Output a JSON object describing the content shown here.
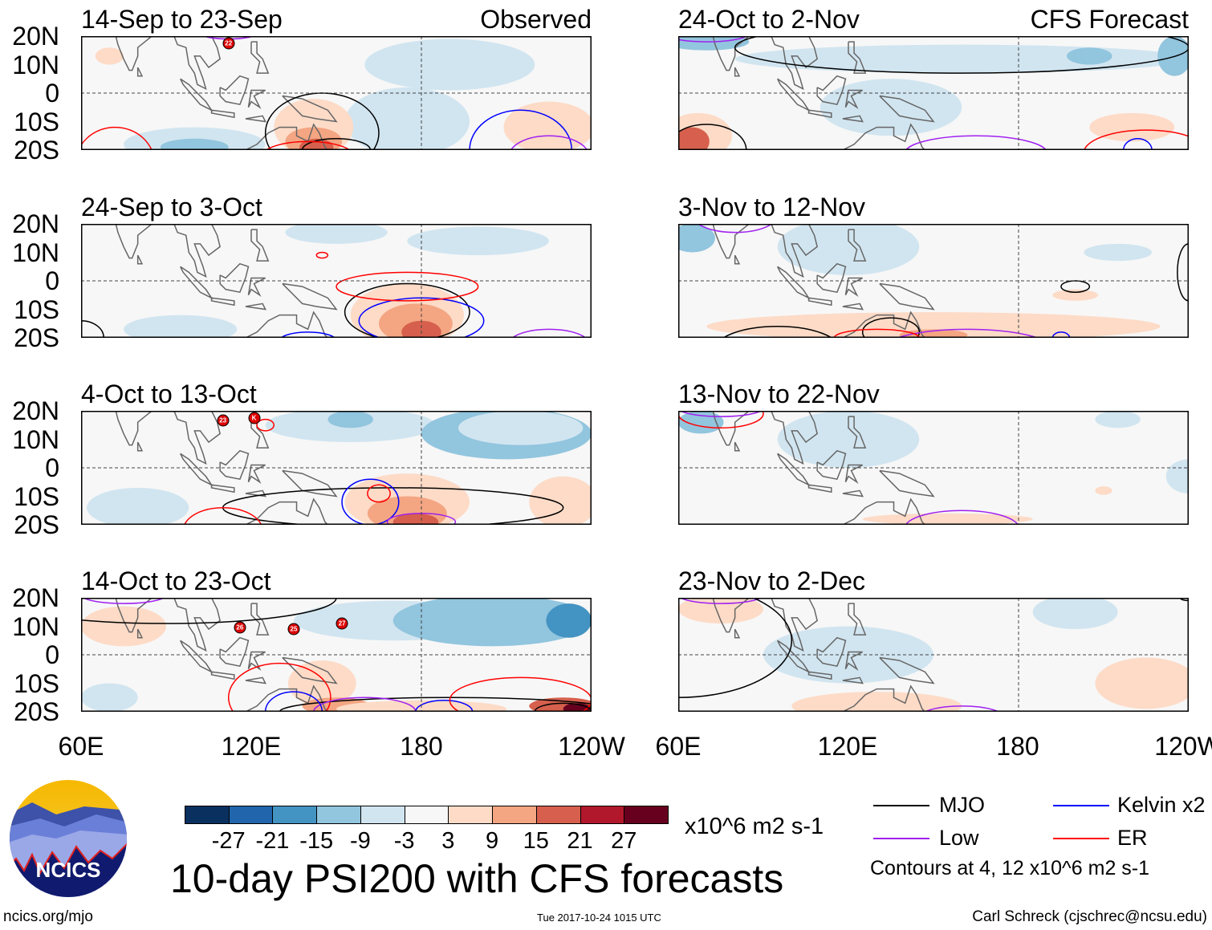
{
  "panels": [
    {
      "title": "14-Sep to 23-Sep",
      "tag": "Observed",
      "storms": [
        {
          "label": "22",
          "lon": 112,
          "lat": 17.5
        }
      ]
    },
    {
      "title": "24-Sep to 3-Oct",
      "tag": "",
      "storms": []
    },
    {
      "title": "4-Oct to 13-Oct",
      "tag": "",
      "storms": [
        {
          "label": "23",
          "lon": 110,
          "lat": 16.5
        },
        {
          "label": "K",
          "lon": 121,
          "lat": 17.5
        }
      ]
    },
    {
      "title": "14-Oct to 23-Oct",
      "tag": "",
      "storms": [
        {
          "label": "26",
          "lon": 116,
          "lat": 9.5
        },
        {
          "label": "25",
          "lon": 135,
          "lat": 9
        },
        {
          "label": "27",
          "lon": 152,
          "lat": 11
        }
      ]
    },
    {
      "title": "24-Oct to 2-Nov",
      "tag": "CFS Forecast",
      "storms": []
    },
    {
      "title": "3-Nov to 12-Nov",
      "tag": "",
      "storms": []
    },
    {
      "title": "13-Nov to 22-Nov",
      "tag": "",
      "storms": []
    },
    {
      "title": "23-Nov to 2-Dec",
      "tag": "",
      "storms": []
    }
  ],
  "lat_labels": [
    "20N",
    "10N",
    "0",
    "10S",
    "20S"
  ],
  "lon_labels": [
    "60E",
    "120E",
    "180",
    "120W"
  ],
  "colorbar": {
    "colors": [
      "#0a3060",
      "#2166ac",
      "#4393c3",
      "#92c5de",
      "#d1e5f0",
      "#f7f7f7",
      "#fddbc7",
      "#f4a582",
      "#d6604d",
      "#b2182b",
      "#67001f"
    ],
    "ticks": [
      "-27",
      "-21",
      "-15",
      "-9",
      "-3",
      "3",
      "9",
      "15",
      "21",
      "27"
    ],
    "units": "x10^6 m2 s-1"
  },
  "legend": {
    "items": [
      {
        "label": "MJO",
        "color": "#000000"
      },
      {
        "label": "Kelvin x2",
        "color": "#0000ff"
      },
      {
        "label": "Low",
        "color": "#a020f0"
      },
      {
        "label": "ER",
        "color": "#ff0000"
      }
    ],
    "note": "Contours at 4, 12 x10^6 m2 s-1"
  },
  "title": "10-day PSI200 with CFS forecasts",
  "logo_text": "NCICS",
  "footer": {
    "left": "ncics.org/mjo",
    "center": "Tue 2017-10-24 1015 UTC",
    "right": "Carl Schreck (cjschrec@ncsu.edu)"
  }
}
